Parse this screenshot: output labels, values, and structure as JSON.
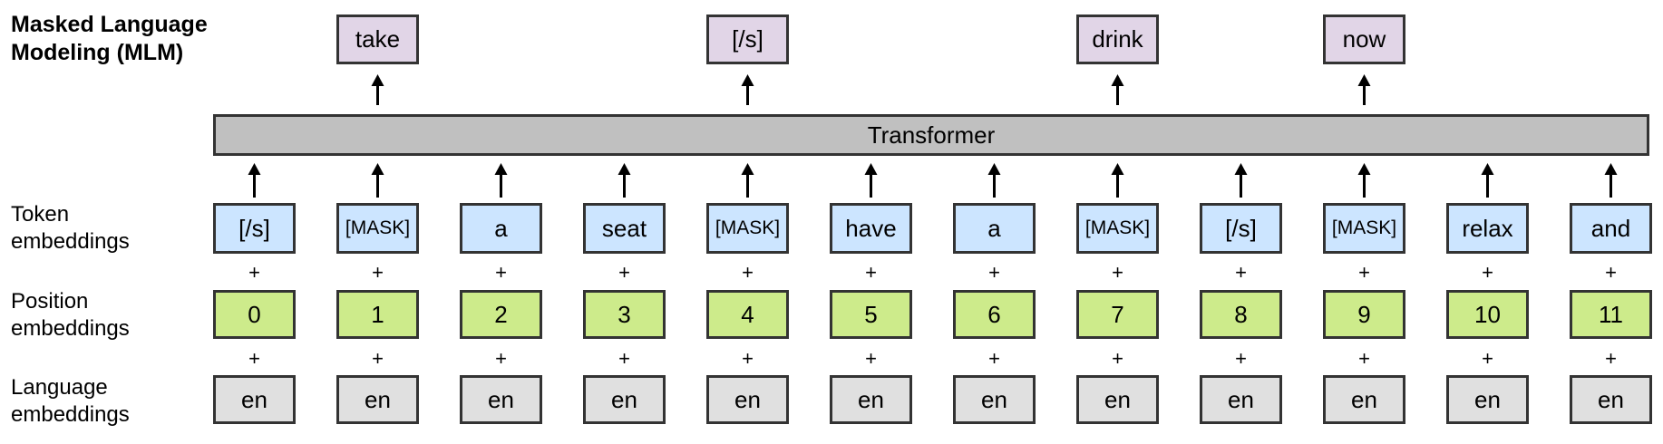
{
  "title": {
    "line1": "Masked Language",
    "line2": "Modeling (MLM)"
  },
  "rows": {
    "token_label": [
      "Token",
      "embeddings"
    ],
    "position_label": [
      "Position",
      "embeddings"
    ],
    "language_label": [
      "Language",
      "embeddings"
    ]
  },
  "transformer_label": "Transformer",
  "tokens": [
    "[/s]",
    "[MASK]",
    "a",
    "seat",
    "[MASK]",
    "have",
    "a",
    "[MASK]",
    "[/s]",
    "[MASK]",
    "relax",
    "and"
  ],
  "positions": [
    "0",
    "1",
    "2",
    "3",
    "4",
    "5",
    "6",
    "7",
    "8",
    "9",
    "10",
    "11"
  ],
  "languages": [
    "en",
    "en",
    "en",
    "en",
    "en",
    "en",
    "en",
    "en",
    "en",
    "en",
    "en",
    "en"
  ],
  "outputs": [
    {
      "column": 1,
      "text": "take"
    },
    {
      "column": 4,
      "text": "[/s]"
    },
    {
      "column": 7,
      "text": "drink"
    },
    {
      "column": 9,
      "text": "now"
    }
  ],
  "plus_symbol": "+",
  "colors": {
    "token": "#cce5ff",
    "position": "#cdeb8b",
    "language": "#e0e0e0",
    "output": "#e1d5e7",
    "transformer": "#c0c0c0",
    "border": "#333333"
  }
}
